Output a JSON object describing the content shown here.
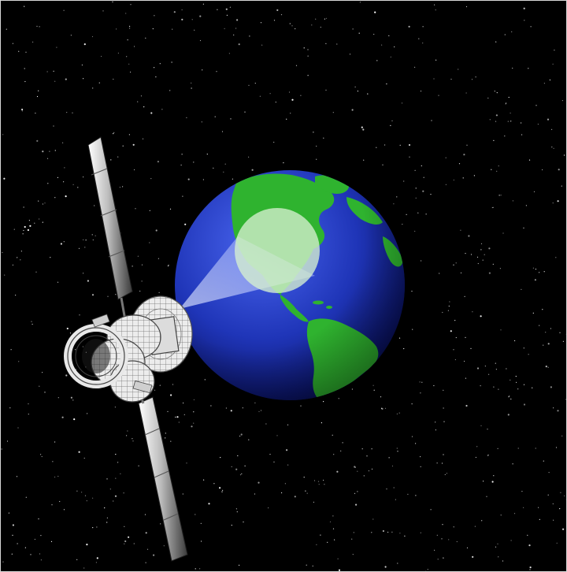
{
  "scene": {
    "subject": "satellite-beaming-signal-to-earth",
    "colors": {
      "space": "#000000",
      "star": "#ffffff",
      "ocean_light": "#3a55d8",
      "ocean_dark": "#08106a",
      "land": "#2fb32f",
      "land_dark": "#1a7a1a",
      "beam": "#c8d8ff",
      "spot": "#d6f0d0",
      "panel_light": "#f2f2f2",
      "panel_dark": "#3a3a3a",
      "body_line": "#555555",
      "body_fill": "#e9e9e9"
    },
    "icons": [
      "earth-globe",
      "satellite",
      "signal-beam",
      "solar-panel",
      "dish-antenna",
      "starfield"
    ]
  }
}
